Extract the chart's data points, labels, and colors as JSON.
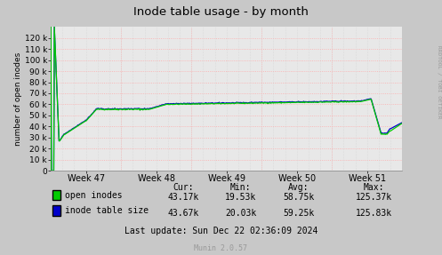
{
  "title": "Inode table usage - by month",
  "ylabel": "number of open inodes",
  "bg_color": "#c8c8c8",
  "plot_bg_color": "#e8e8e8",
  "grid_color_h": "#ffb0b0",
  "grid_color_v": "#c8c8c8",
  "x_ticks": [
    "Week 47",
    "Week 48",
    "Week 49",
    "Week 50",
    "Week 51"
  ],
  "y_ticks": [
    0,
    10000,
    20000,
    30000,
    40000,
    50000,
    60000,
    70000,
    80000,
    90000,
    100000,
    110000,
    120000
  ],
  "ylim": [
    0,
    130000
  ],
  "open_inodes_color": "#00cc00",
  "inode_table_color": "#0000cc",
  "legend_labels": [
    "open inodes",
    "inode table size"
  ],
  "stats_headers": [
    "Cur:",
    "Min:",
    "Avg:",
    "Max:"
  ],
  "stats_open": [
    "43.17k",
    "19.53k",
    "58.75k",
    "125.37k"
  ],
  "stats_table": [
    "43.67k",
    "20.03k",
    "59.25k",
    "125.83k"
  ],
  "last_update": "Last update: Sun Dec 22 02:36:09 2024",
  "munin_version": "Munin 2.0.57",
  "rrdtool_text": "RRDTOOL / TOBI OETIKER"
}
